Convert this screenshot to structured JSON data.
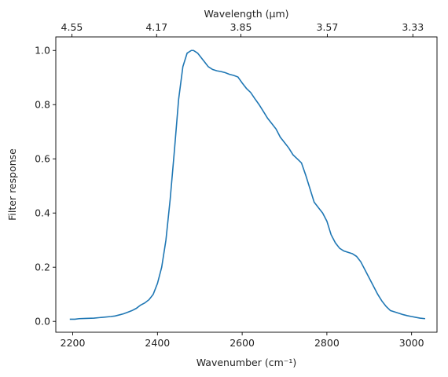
{
  "chart_data": {
    "type": "line",
    "title": "",
    "xlabel": "Wavenumber (cm⁻¹)",
    "ylabel": "Filter response",
    "top_xlabel": "Wavelength (μm)",
    "xlim": [
      2160,
      3060
    ],
    "ylim": [
      -0.04,
      1.05
    ],
    "x_ticks": [
      2200,
      2400,
      2600,
      2800,
      3000
    ],
    "x_tick_labels": [
      "2200",
      "2400",
      "2600",
      "2800",
      "3000"
    ],
    "y_ticks": [
      0.0,
      0.2,
      0.4,
      0.6,
      0.8,
      1.0
    ],
    "y_tick_labels": [
      "0.0",
      "0.2",
      "0.4",
      "0.6",
      "0.8",
      "1.0"
    ],
    "top_ticks_wavenumber": [
      2198,
      2398,
      2597,
      2801,
      3003
    ],
    "top_tick_labels": [
      "4.55",
      "4.17",
      "3.85",
      "3.57",
      "3.33"
    ],
    "grid": false,
    "legend": "none",
    "series": [
      {
        "color": "#1f77b4",
        "x": [
          2193,
          2205,
          2215,
          2230,
          2250,
          2270,
          2290,
          2300,
          2310,
          2320,
          2330,
          2340,
          2350,
          2360,
          2370,
          2380,
          2390,
          2400,
          2410,
          2420,
          2430,
          2440,
          2450,
          2460,
          2470,
          2480,
          2485,
          2490,
          2495,
          2500,
          2505,
          2510,
          2515,
          2520,
          2530,
          2540,
          2550,
          2560,
          2570,
          2580,
          2590,
          2600,
          2610,
          2620,
          2630,
          2640,
          2650,
          2660,
          2670,
          2680,
          2690,
          2700,
          2710,
          2720,
          2730,
          2740,
          2750,
          2760,
          2770,
          2780,
          2790,
          2800,
          2810,
          2820,
          2830,
          2840,
          2850,
          2860,
          2870,
          2880,
          2890,
          2900,
          2910,
          2920,
          2930,
          2940,
          2950,
          2960,
          2970,
          2980,
          2990,
          3000,
          3010,
          3020,
          3032
        ],
        "y": [
          0.008,
          0.008,
          0.01,
          0.011,
          0.012,
          0.015,
          0.018,
          0.02,
          0.024,
          0.028,
          0.034,
          0.04,
          0.048,
          0.06,
          0.068,
          0.08,
          0.1,
          0.14,
          0.2,
          0.3,
          0.45,
          0.63,
          0.82,
          0.94,
          0.99,
          1.0,
          1.0,
          0.995,
          0.99,
          0.98,
          0.97,
          0.96,
          0.95,
          0.94,
          0.93,
          0.925,
          0.922,
          0.918,
          0.912,
          0.908,
          0.902,
          0.88,
          0.86,
          0.845,
          0.822,
          0.8,
          0.775,
          0.75,
          0.73,
          0.71,
          0.68,
          0.66,
          0.64,
          0.615,
          0.6,
          0.585,
          0.54,
          0.49,
          0.44,
          0.42,
          0.4,
          0.37,
          0.32,
          0.29,
          0.27,
          0.26,
          0.255,
          0.25,
          0.24,
          0.22,
          0.19,
          0.16,
          0.13,
          0.1,
          0.075,
          0.055,
          0.04,
          0.035,
          0.03,
          0.025,
          0.021,
          0.018,
          0.015,
          0.012,
          0.01
        ]
      }
    ]
  }
}
